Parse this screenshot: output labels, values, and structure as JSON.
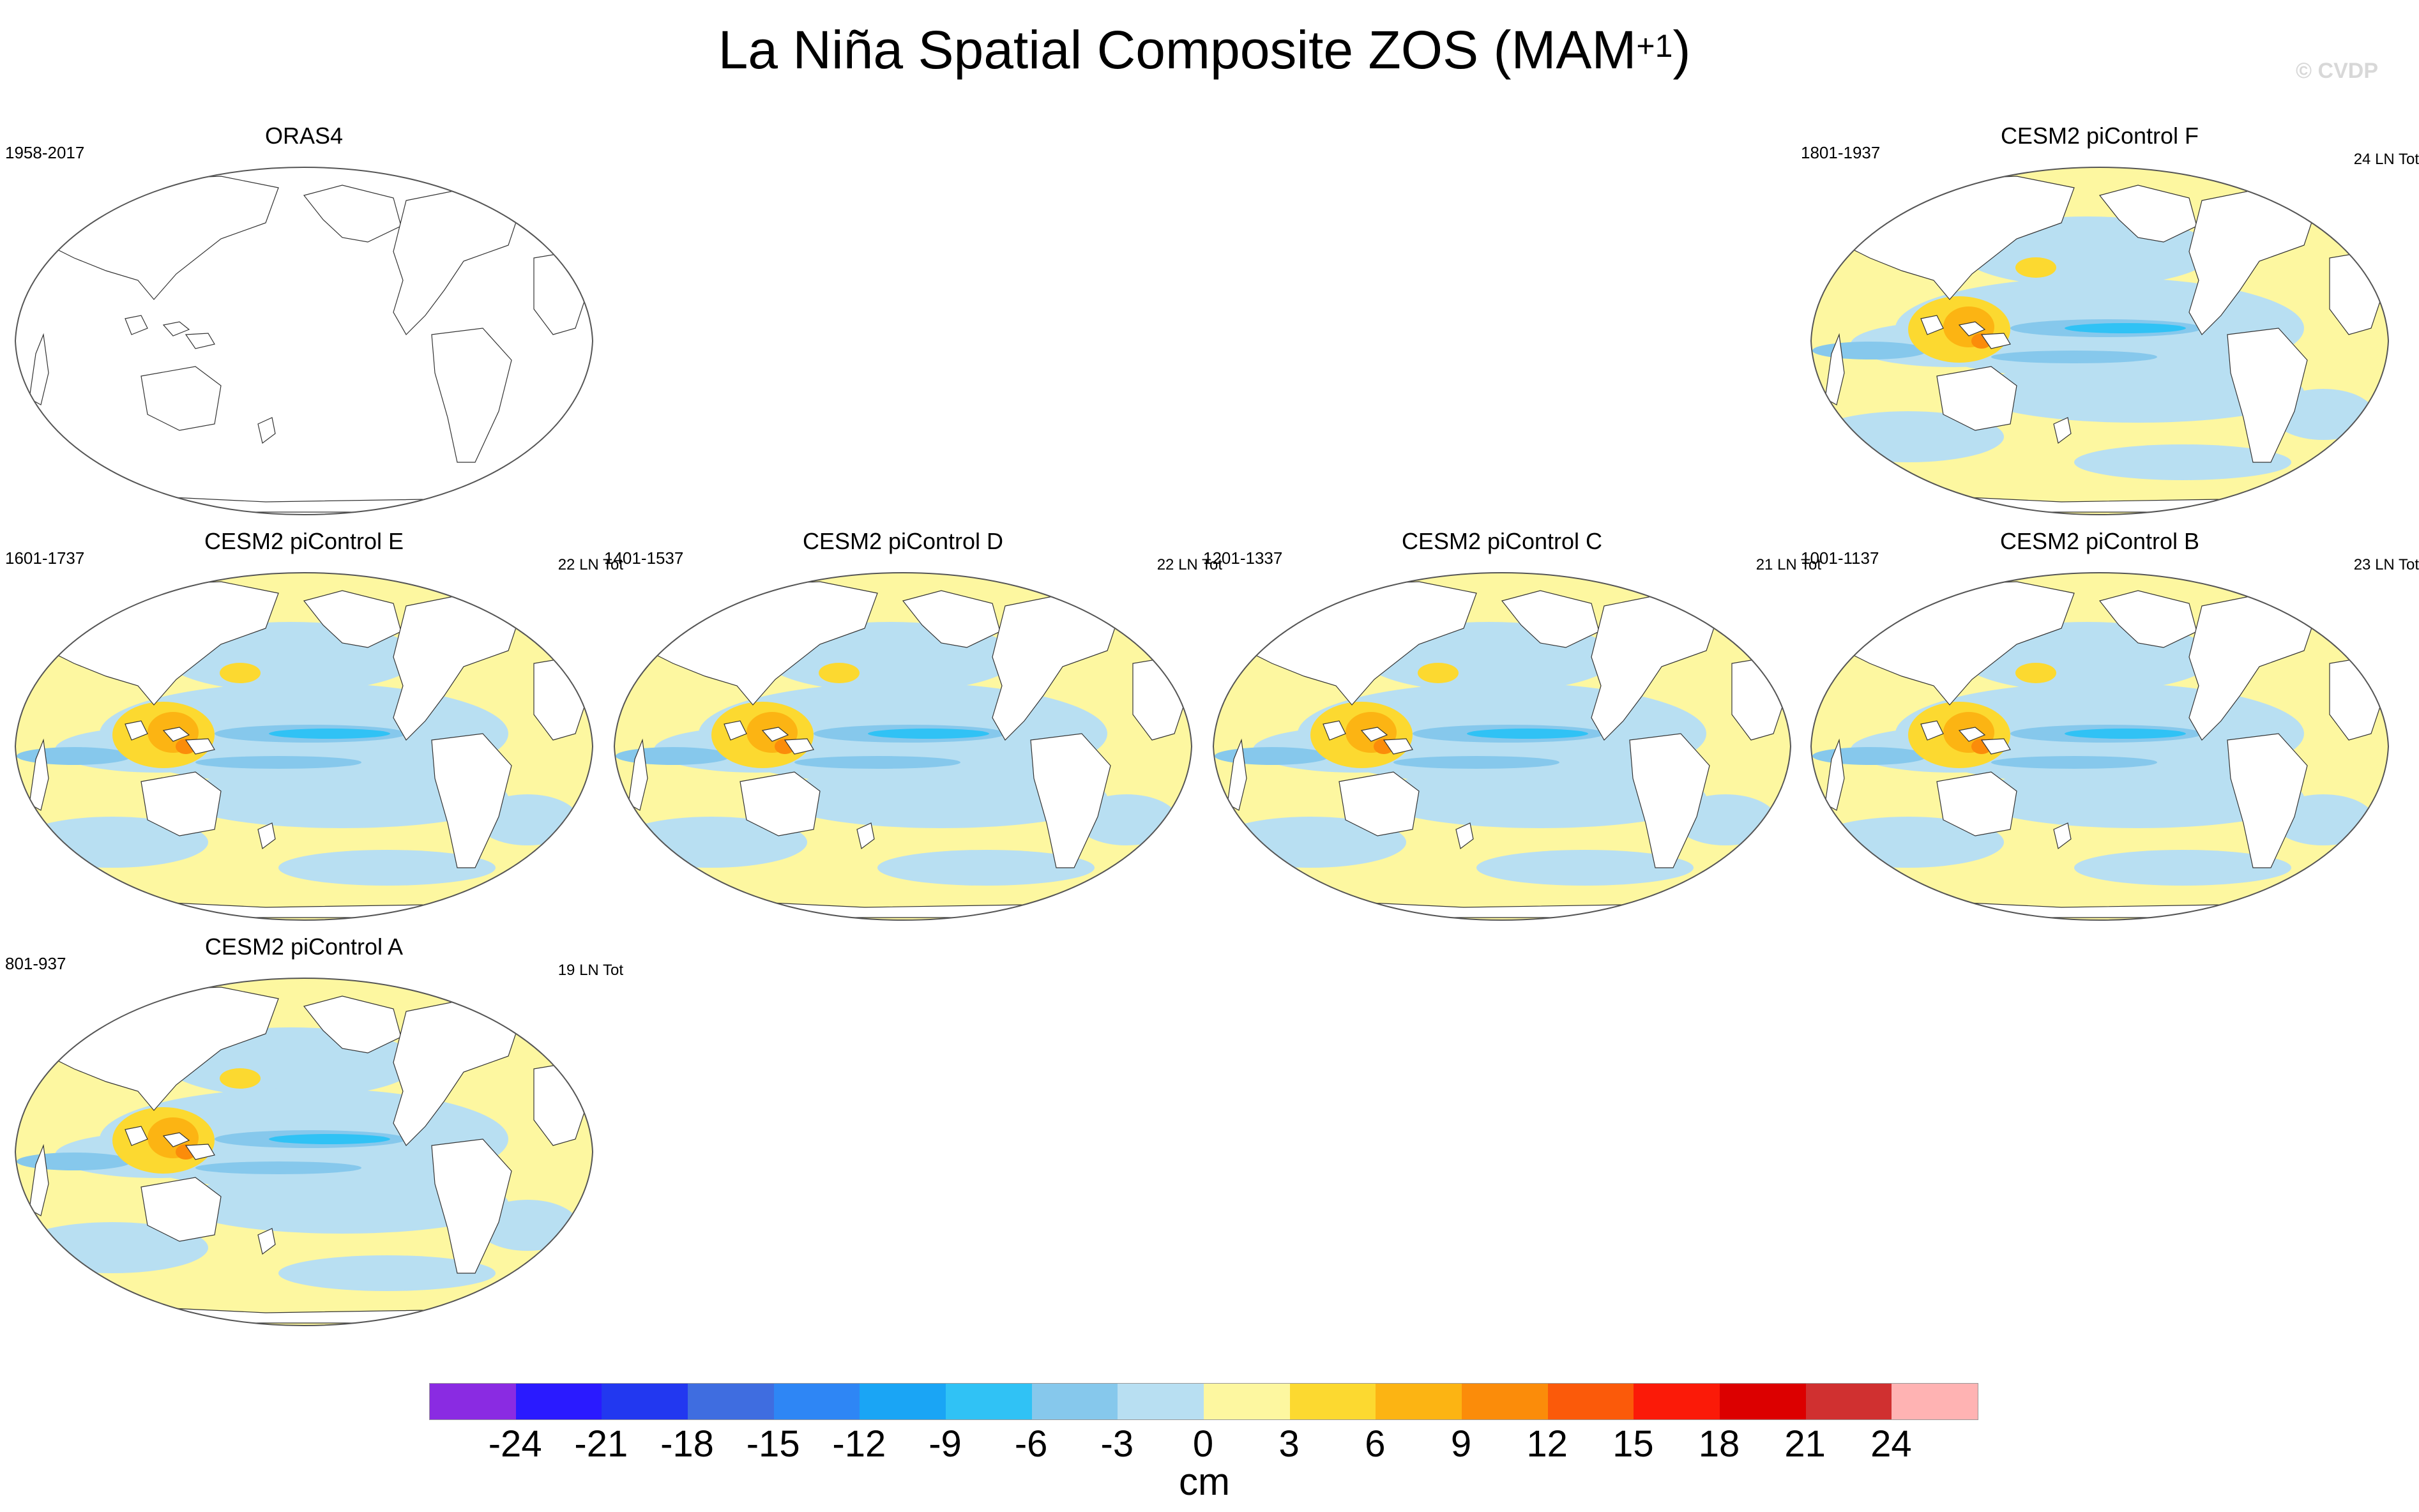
{
  "figure": {
    "title": "La Niña Spatial Composite ZOS (MAM",
    "title_sup": "+1",
    "title_close": ")",
    "credit": "© CVDP"
  },
  "panels": [
    {
      "title": "ORAS4",
      "years": "1958-2017",
      "count": "",
      "data": false
    },
    {
      "title": "CESM2 piControl F",
      "years": "1801-1937",
      "count": "24 LN Tot",
      "data": true
    },
    {
      "title": "CESM2 piControl E",
      "years": "1601-1737",
      "count": "22 LN Tot",
      "data": true
    },
    {
      "title": "CESM2 piControl D",
      "years": "1401-1537",
      "count": "22 LN Tot",
      "data": true
    },
    {
      "title": "CESM2 piControl C",
      "years": "1201-1337",
      "count": "21 LN Tot",
      "data": true
    },
    {
      "title": "CESM2 piControl B",
      "years": "1001-1137",
      "count": "23 LN Tot",
      "data": true
    },
    {
      "title": "CESM2 piControl A",
      "years": "801-937",
      "count": "19 LN Tot",
      "data": true
    }
  ],
  "colorbar": {
    "unit": "cm",
    "ticks": [
      "-24",
      "-21",
      "-18",
      "-15",
      "-12",
      "-9",
      "-6",
      "-3",
      "0",
      "3",
      "6",
      "9",
      "12",
      "15",
      "18",
      "21",
      "24"
    ],
    "colors": [
      "#8a2be2",
      "#2a1aff",
      "#2238f0",
      "#3f6de0",
      "#2e86f5",
      "#1aa5f5",
      "#30c2f5",
      "#86c8ec",
      "#b8dff2",
      "#fdf7a0",
      "#fcd930",
      "#fcb413",
      "#fb8c0a",
      "#fb5a0a",
      "#fb1a08",
      "#dc0000",
      "#d03030",
      "#ffb3b3"
    ]
  }
}
